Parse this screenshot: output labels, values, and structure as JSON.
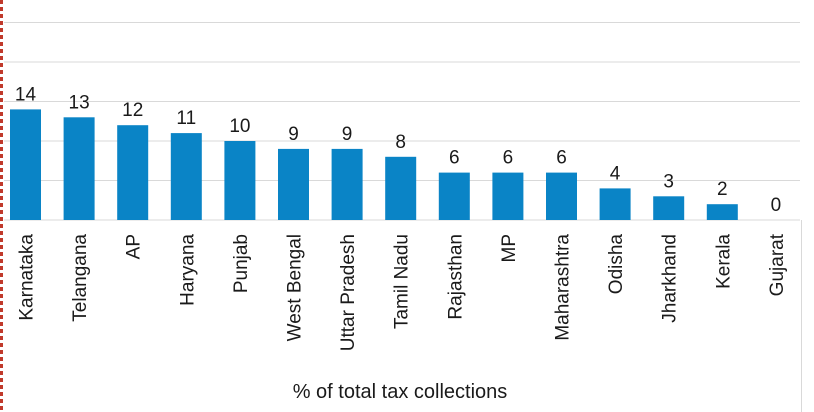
{
  "chart_data": {
    "type": "bar",
    "categories": [
      "Karnataka",
      "Telangana",
      "AP",
      "Haryana",
      "Punjab",
      "West Bengal",
      "Uttar Pradesh",
      "Tamil Nadu",
      "Rajasthan",
      "MP",
      "Maharashtra",
      "Odisha",
      "Jharkhand",
      "Kerala",
      "Gujarat"
    ],
    "values": [
      14,
      13,
      12,
      11,
      10,
      9,
      9,
      8,
      6,
      6,
      6,
      4,
      3,
      2,
      0
    ],
    "xlabel": "% of total tax collections",
    "ylim": [
      0,
      25
    ],
    "grid": true,
    "colors": {
      "bar": "#0a84c6",
      "grid": "#d9d9d9",
      "text": "#1a1a1a"
    }
  }
}
